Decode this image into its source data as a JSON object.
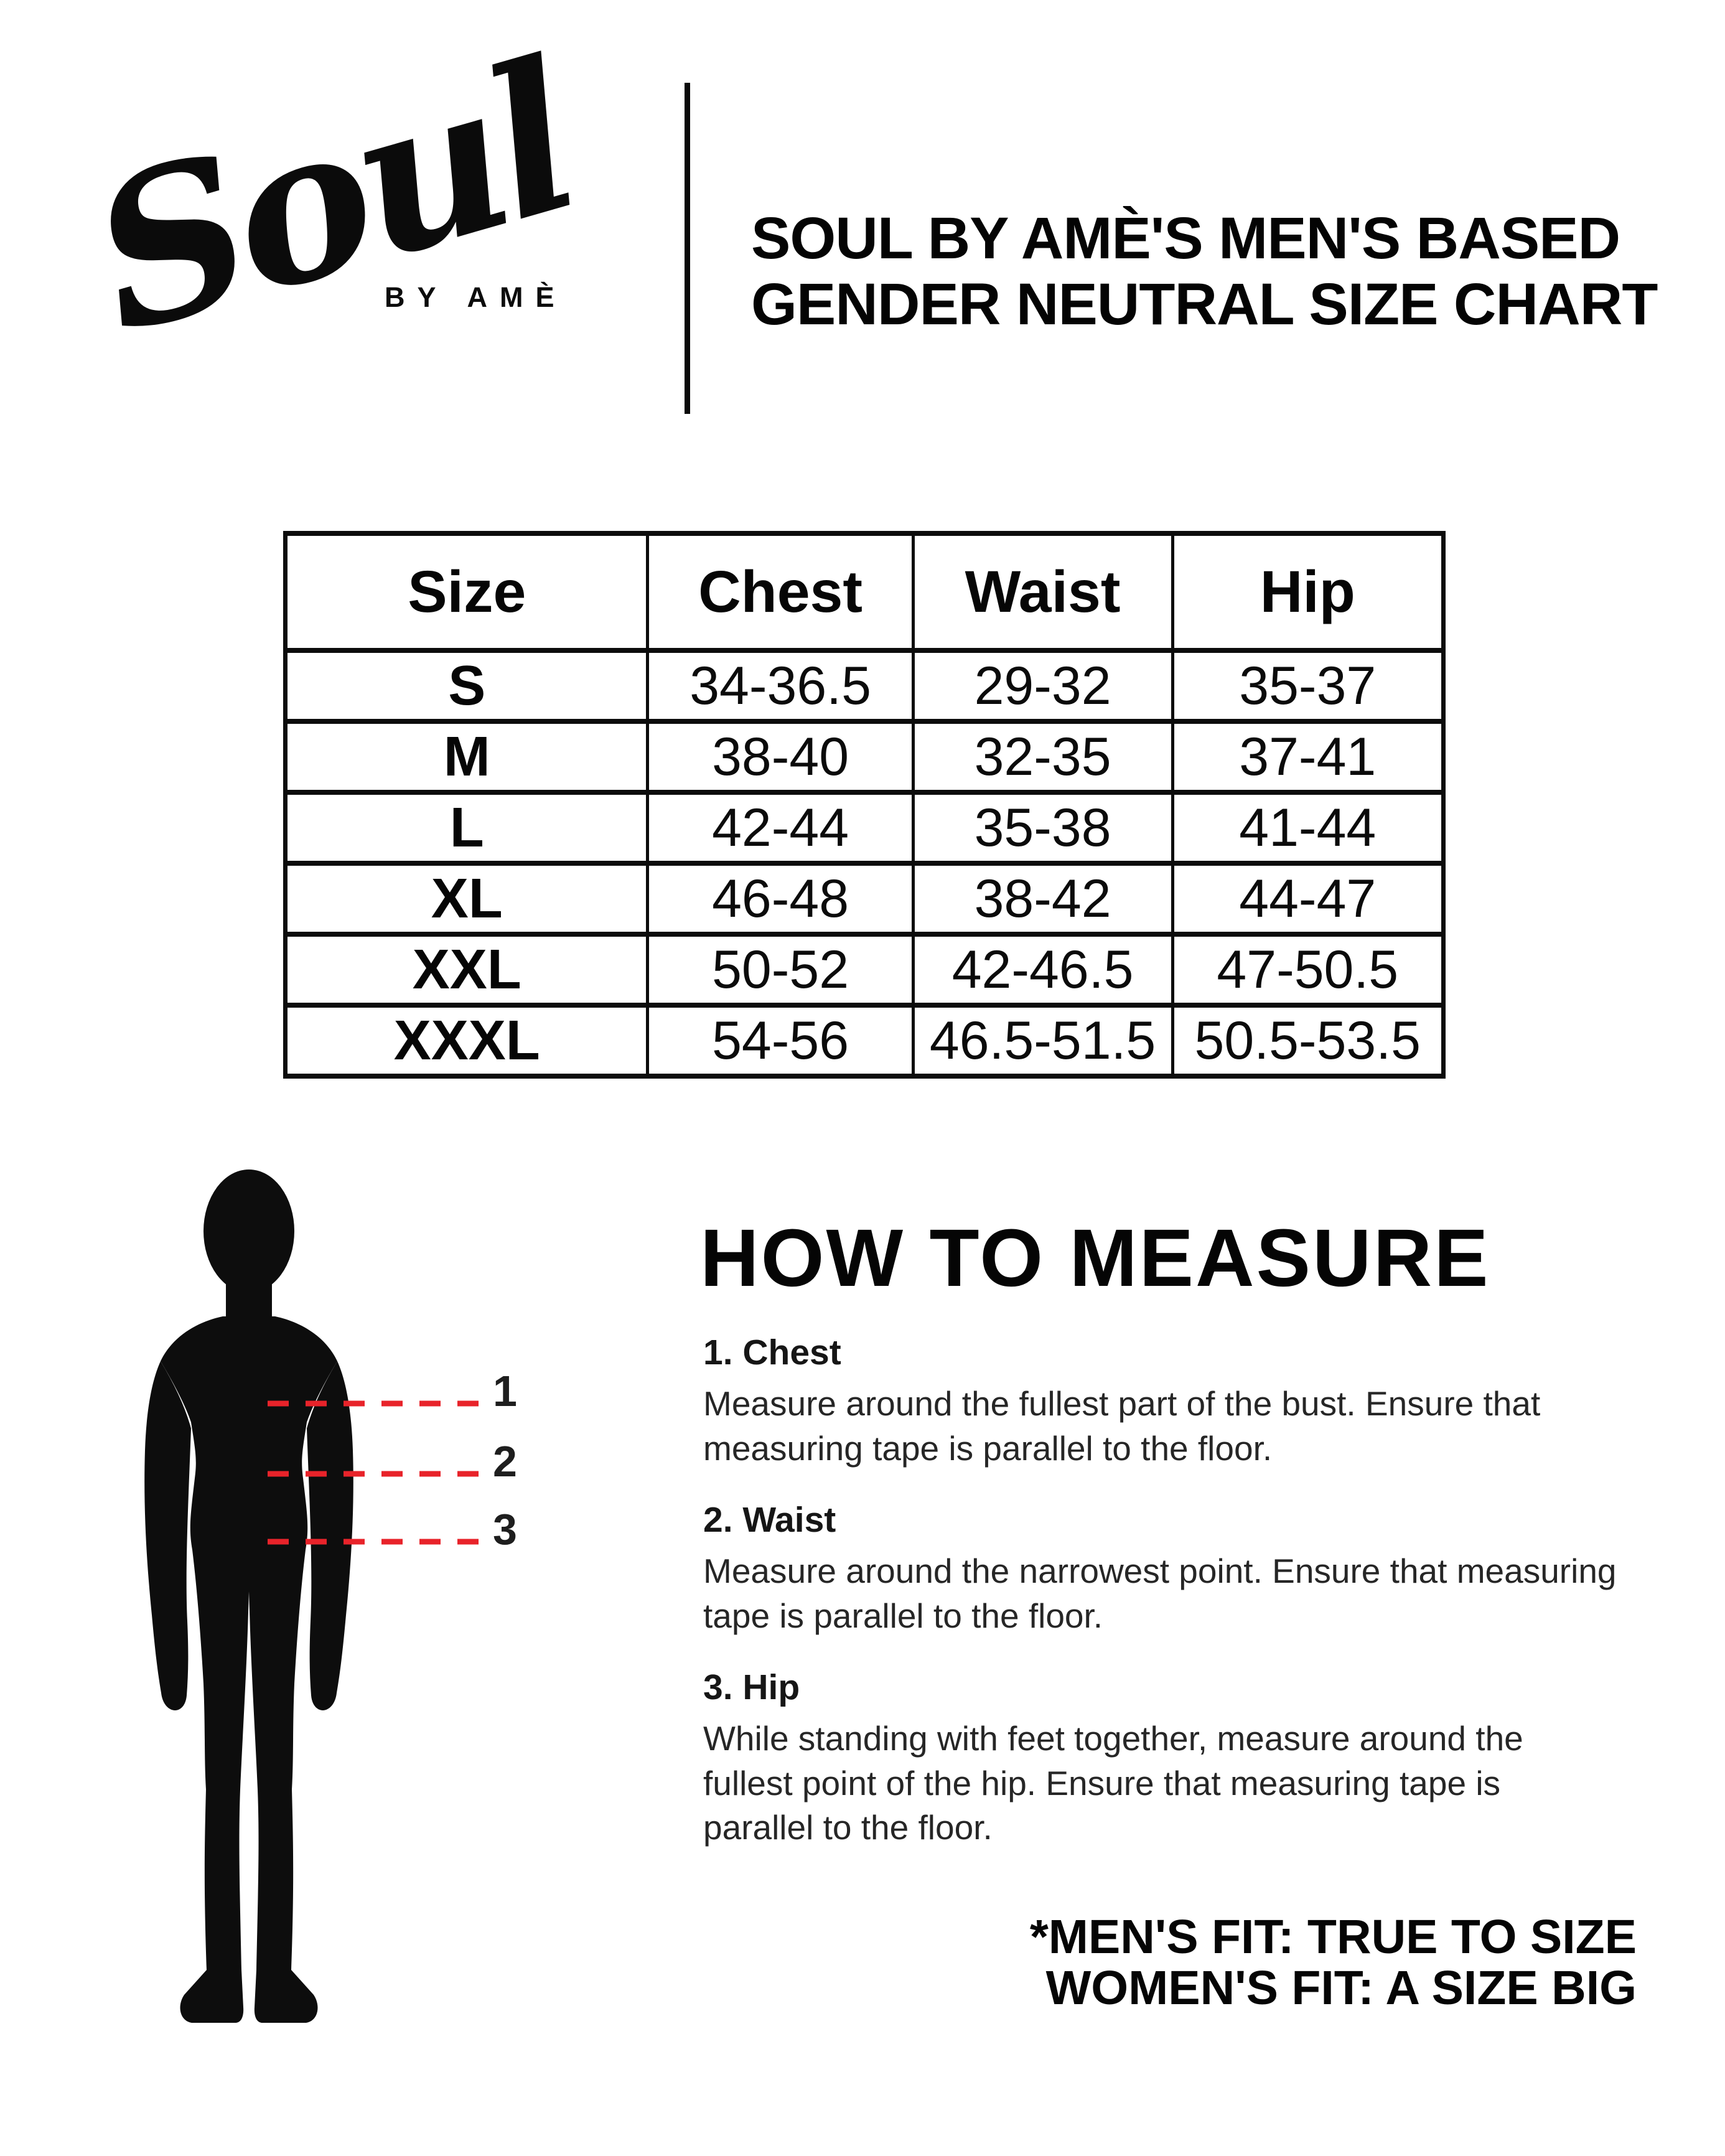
{
  "brand": {
    "script": "Soul",
    "subtext": "BY AMÈ"
  },
  "header": {
    "title_lines": [
      "SOUL BY AMÈ'S MEN'S BASED",
      "GENDER NEUTRAL SIZE CHART"
    ]
  },
  "size_table": {
    "columns": [
      "Size",
      "Chest",
      "Waist",
      "Hip"
    ],
    "rows": [
      [
        "S",
        "34-36.5",
        "29-32",
        "35-37"
      ],
      [
        "M",
        "38-40",
        "32-35",
        "37-41"
      ],
      [
        "L",
        "42-44",
        "35-38",
        "41-44"
      ],
      [
        "XL",
        "46-48",
        "38-42",
        "44-47"
      ],
      [
        "XXL",
        "50-52",
        "42-46.5",
        "47-50.5"
      ],
      [
        "XXXL",
        "54-56",
        "46.5-51.5",
        "50.5-53.5"
      ]
    ]
  },
  "diagram": {
    "line_labels": [
      "1",
      "2",
      "3"
    ],
    "dash_color": "#e8232a",
    "silhouette_color": "#0d0d0d"
  },
  "how_to_measure": {
    "heading": "HOW TO MEASURE",
    "steps": [
      {
        "title": "1. Chest",
        "lines": [
          "Measure around the fullest part of the bust. Ensure that",
          "measuring tape is parallel to the floor."
        ]
      },
      {
        "title": "2. Waist",
        "lines": [
          "Measure around the narrowest point. Ensure that measuring",
          "tape is parallel to the floor."
        ]
      },
      {
        "title": "3. Hip",
        "lines": [
          "While standing with feet together, measure around the",
          "fullest point of the hip. Ensure that measuring tape is",
          "parallel to the floor."
        ]
      }
    ]
  },
  "footer": {
    "lines": [
      "*MEN'S FIT: TRUE TO SIZE",
      "WOMEN'S FIT: A SIZE BIG"
    ]
  }
}
